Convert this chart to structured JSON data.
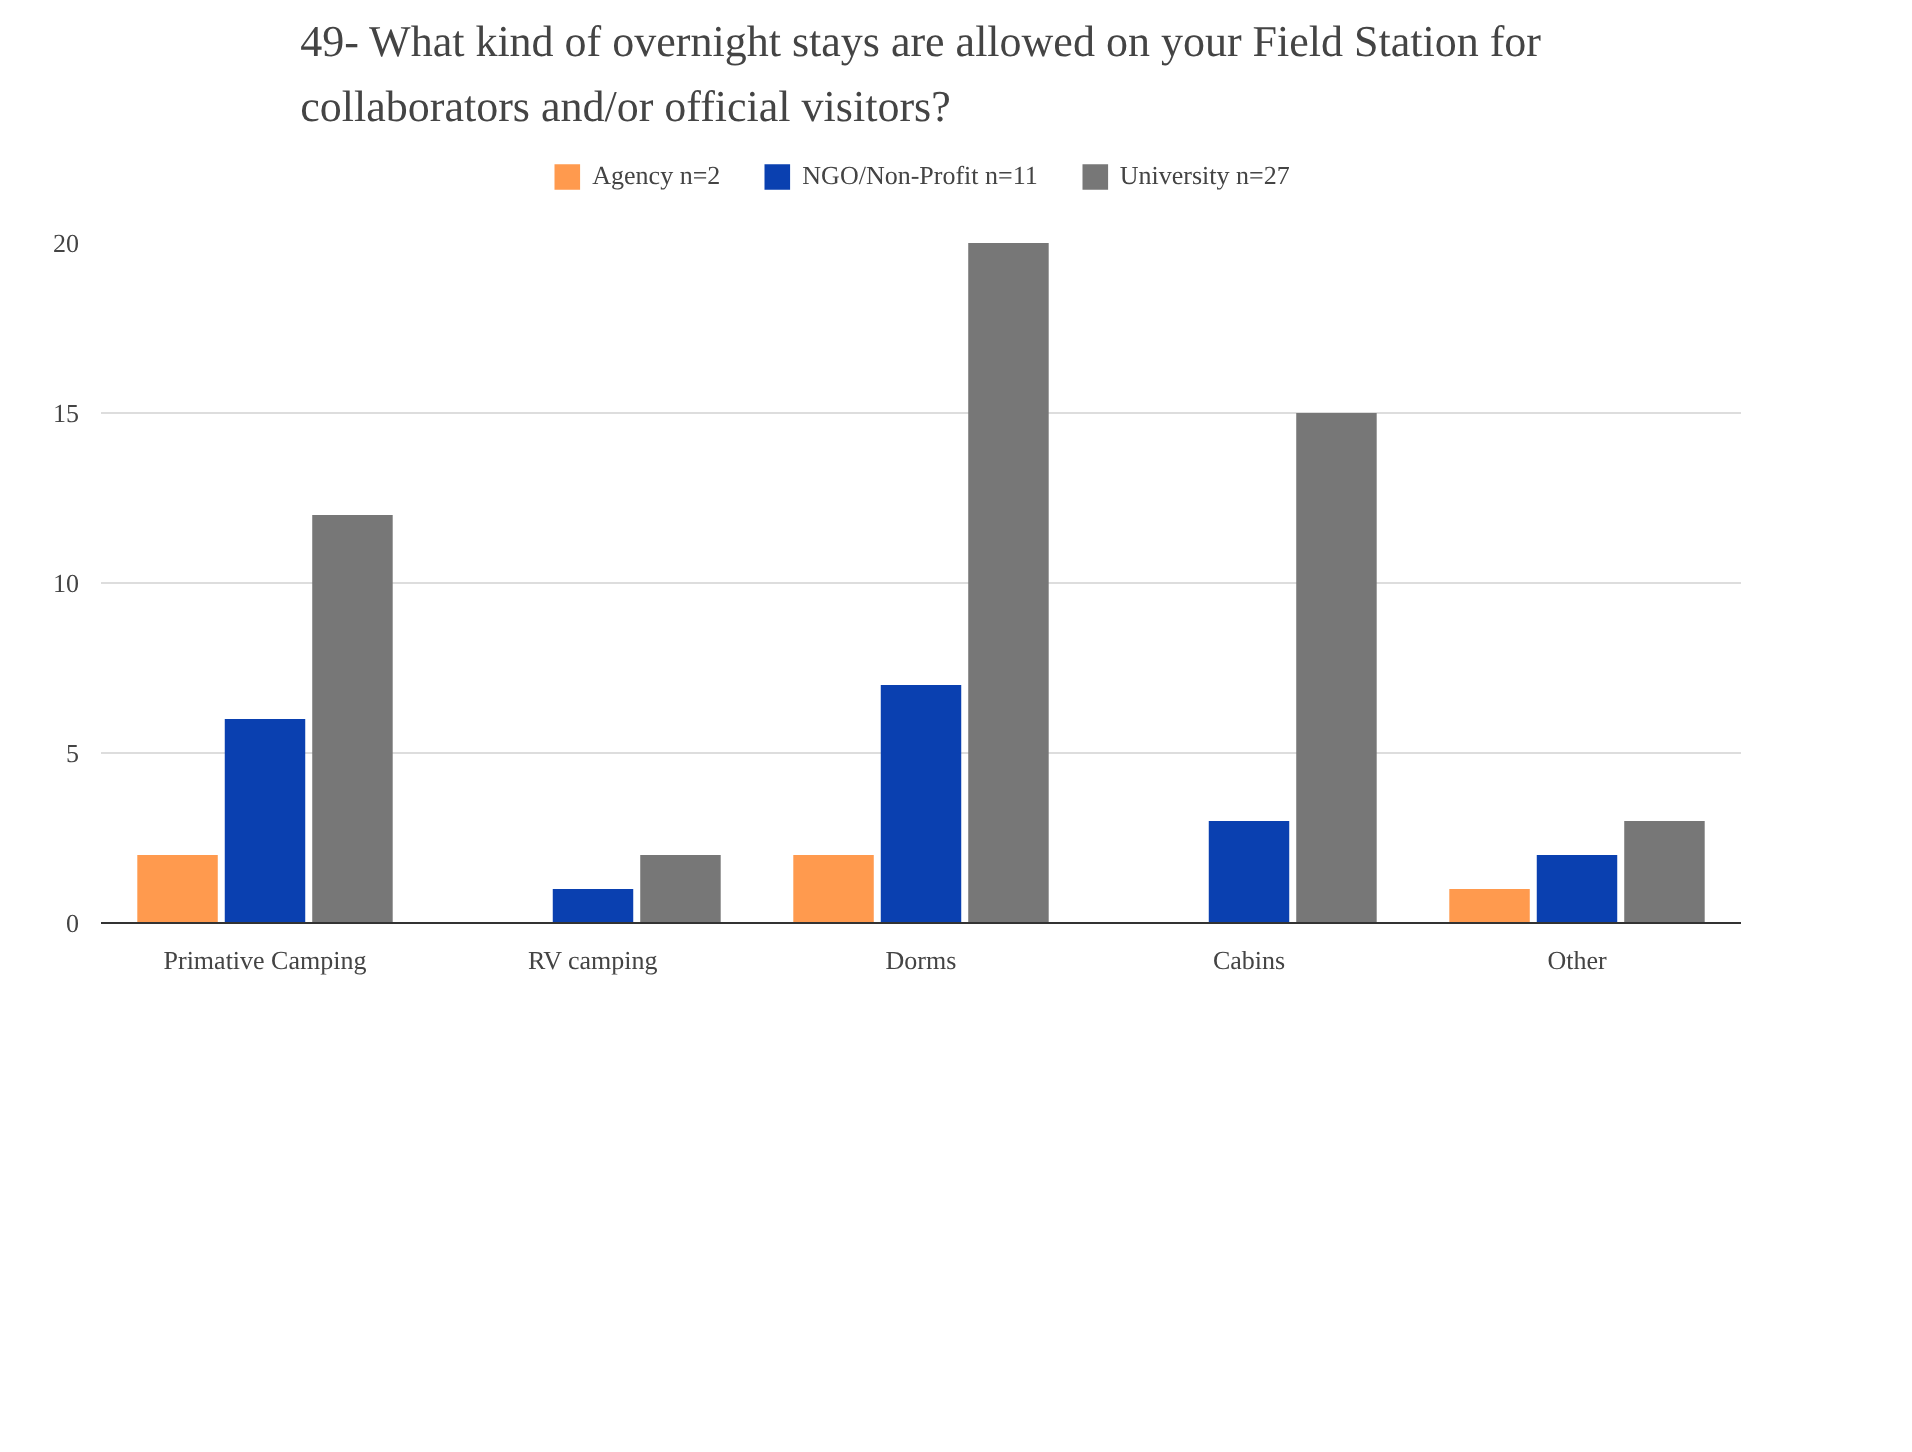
{
  "chart_data": {
    "type": "bar",
    "title": "49- What kind of overnight stays are allowed on your Field Station for collaborators and/or official visitors?",
    "categories": [
      "Primative Camping",
      "RV camping",
      "Dorms",
      "Cabins",
      "Other"
    ],
    "series": [
      {
        "name": "Agency n=2",
        "color": "#ff9a4e",
        "values": [
          2,
          0,
          2,
          0,
          1
        ]
      },
      {
        "name": "NGO/Non-Profit n=11",
        "color": "#0a40b0",
        "values": [
          6,
          1,
          7,
          3,
          2
        ]
      },
      {
        "name": "University n=27",
        "color": "#777777",
        "values": [
          12,
          2,
          20,
          15,
          3
        ]
      }
    ],
    "ylim": [
      0,
      20
    ],
    "yticks": [
      0,
      5,
      10,
      15,
      20
    ],
    "grid": "y",
    "legend": "top"
  }
}
